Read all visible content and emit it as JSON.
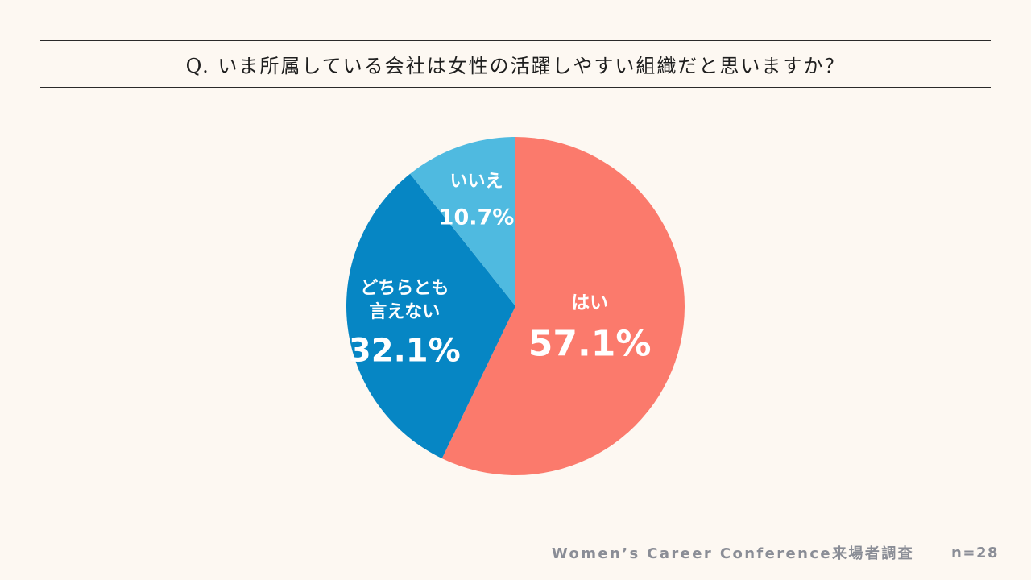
{
  "question": "Q. いま所属している会社は女性の活躍しやすい組織だと思いますか？",
  "footer": {
    "source": "Women’s Career Conference来場者調査",
    "n": "n=28"
  },
  "chart_data": {
    "type": "pie",
    "title": "Q. いま所属している会社は女性の活躍しやすい組織だと思いますか？",
    "start": "top",
    "direction": "clockwise",
    "slices": [
      {
        "label": "はい",
        "value": 57.1,
        "value_text": "57.1%",
        "color": "#fb7a6c"
      },
      {
        "label": "どちらとも言えない",
        "label_lines": [
          "どちらとも",
          "言えない"
        ],
        "value": 32.1,
        "value_text": "32.1%",
        "color": "#0686c4"
      },
      {
        "label": "いいえ",
        "value": 10.7,
        "value_text": "10.7%",
        "color": "#4fbae0"
      }
    ]
  }
}
